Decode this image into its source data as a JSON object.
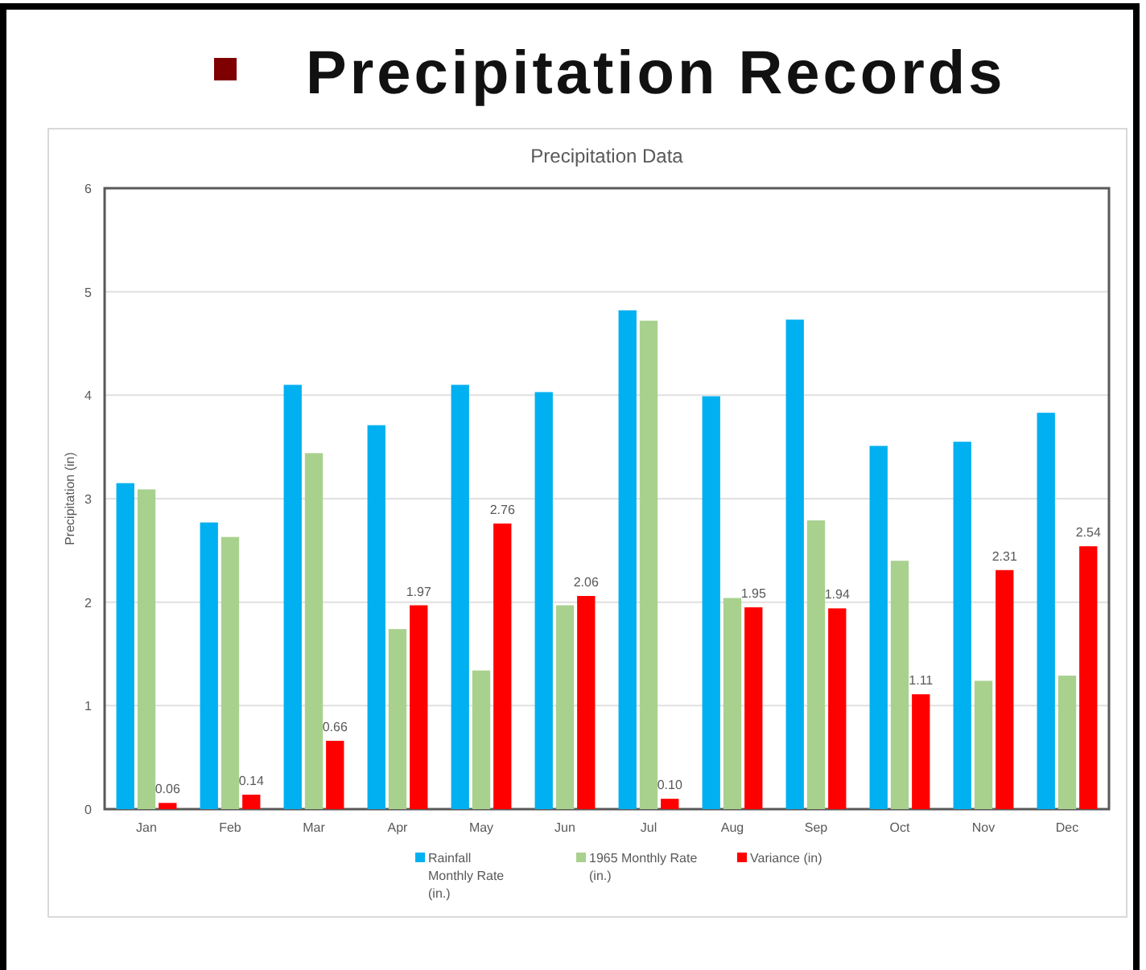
{
  "chart_data": {
    "type": "bar",
    "title": "Precipitation Records",
    "subtitle": "Precipitation Data",
    "ylabel": "Precipitation (in)",
    "categories": [
      "Jan",
      "Feb",
      "Mar",
      "Apr",
      "May",
      "Jun",
      "Jul",
      "Aug",
      "Sep",
      "Oct",
      "Nov",
      "Dec"
    ],
    "series": [
      {
        "name": "Rainfall Monthly Rate (in.)",
        "color": "#00b0f0",
        "values": [
          3.15,
          2.77,
          4.1,
          3.71,
          4.1,
          4.03,
          4.82,
          3.99,
          4.73,
          3.51,
          3.55,
          3.83
        ]
      },
      {
        "name": "1965 Monthly Rate (in.)",
        "color": "#a9d18e",
        "values": [
          3.09,
          2.63,
          3.44,
          1.74,
          1.34,
          1.97,
          4.72,
          2.04,
          2.79,
          2.4,
          1.24,
          1.29
        ]
      },
      {
        "name": "Variance (in)",
        "color": "#ff0000",
        "values": [
          0.06,
          0.14,
          0.66,
          1.97,
          2.76,
          2.06,
          0.1,
          1.95,
          1.94,
          1.11,
          2.31,
          2.54
        ],
        "value_labels": [
          "0.06",
          "0.14",
          "0.66",
          "1.97",
          "2.76",
          "2.06",
          "0.10",
          "1.95",
          "1.94",
          "1.11",
          "2.31",
          "2.54"
        ]
      }
    ],
    "ylim": [
      0,
      6
    ],
    "yticks": [
      0,
      1,
      2,
      3,
      4,
      5,
      6
    ],
    "grid": "y",
    "legend": "bottom"
  }
}
